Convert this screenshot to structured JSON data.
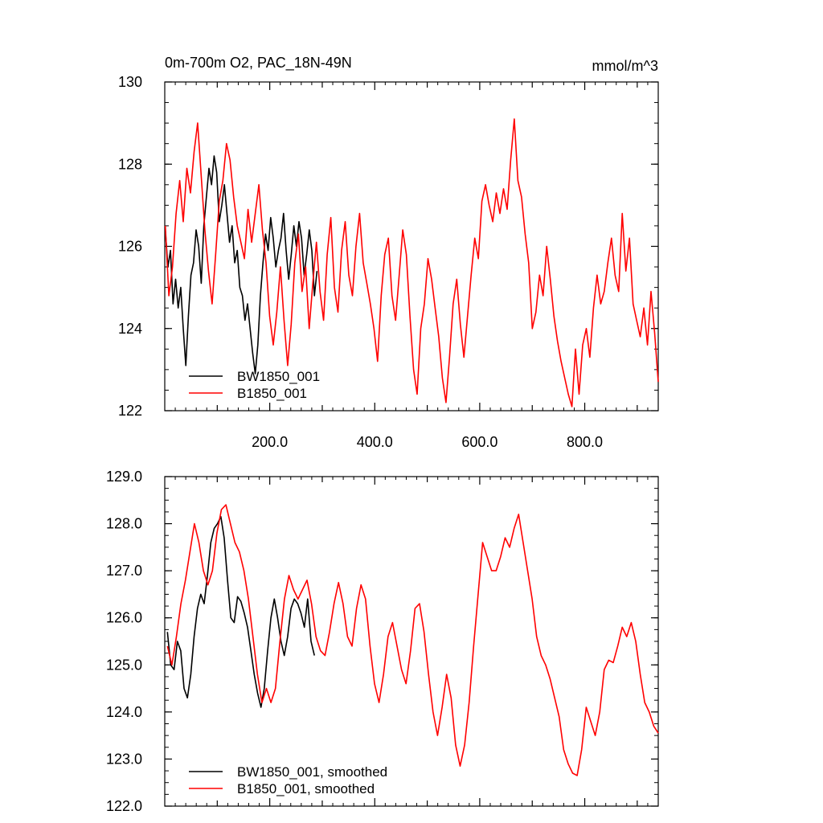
{
  "chart_data": [
    {
      "type": "line",
      "title": "0m-700m O2, PAC_18N-49N",
      "units": "mmol/m^3",
      "xlim": [
        0,
        940
      ],
      "ylim": [
        122,
        130
      ],
      "yticks": [
        "122",
        "124",
        "126",
        "128",
        "130"
      ],
      "xticks": [
        "200.0",
        "400.0",
        "600.0",
        "800.0"
      ],
      "legend_position": "bottom-left",
      "series": [
        {
          "name": "BW1850_001",
          "color": "#000000",
          "x_start": 1,
          "x_end": 290,
          "values": [
            126.4,
            125.5,
            125.9,
            124.6,
            125.2,
            124.5,
            125.0,
            124.0,
            123.1,
            124.3,
            125.3,
            125.6,
            126.4,
            126.0,
            125.1,
            126.5,
            127.2,
            127.9,
            127.5,
            128.2,
            127.8,
            126.6,
            127.0,
            127.5,
            126.8,
            126.1,
            126.5,
            125.6,
            125.9,
            125.0,
            124.8,
            124.2,
            124.6,
            124.0,
            123.4,
            122.9,
            123.6,
            124.8,
            125.6,
            126.3,
            125.9,
            126.7,
            126.2,
            125.5,
            125.9,
            126.2,
            126.8,
            125.9,
            125.2,
            125.8,
            126.5,
            126.0,
            126.6,
            126.2,
            125.3,
            125.8,
            126.4,
            125.9,
            124.8,
            125.4
          ],
          "smoothed": [
            125.7,
            125.0,
            124.9,
            125.5,
            125.3,
            124.5,
            124.3,
            124.8,
            125.6,
            126.2,
            126.5,
            126.3,
            126.9,
            127.6,
            127.9,
            128.0,
            128.15,
            127.7,
            126.8,
            126.0,
            125.9,
            126.45,
            126.35,
            126.1,
            125.8,
            125.3,
            124.8,
            124.4,
            124.1,
            124.5,
            125.3,
            126.0,
            126.4,
            126.0,
            125.5,
            125.2,
            125.6,
            126.2,
            126.4,
            126.3,
            126.1,
            125.8,
            126.4,
            125.5,
            125.2
          ]
        },
        {
          "name": "B1850_001",
          "color": "#ff0000",
          "x_start": 1,
          "x_end": 940,
          "values": [
            126.5,
            124.8,
            125.5,
            126.8,
            127.6,
            126.6,
            127.9,
            127.3,
            128.3,
            129.0,
            127.7,
            126.4,
            125.4,
            124.6,
            125.8,
            127.1,
            127.6,
            128.5,
            128.1,
            127.2,
            126.5,
            126.1,
            125.7,
            126.9,
            126.1,
            126.8,
            127.5,
            126.4,
            125.6,
            124.3,
            123.6,
            124.4,
            125.5,
            124.2,
            123.1,
            124.1,
            125.6,
            126.3,
            124.9,
            125.5,
            124.0,
            125.1,
            126.1,
            124.9,
            124.2,
            125.8,
            126.7,
            125.0,
            124.4,
            125.9,
            126.6,
            125.3,
            124.8,
            126.0,
            126.8,
            125.6,
            125.1,
            124.6,
            124.0,
            123.2,
            124.8,
            125.8,
            126.2,
            124.8,
            124.2,
            125.3,
            126.4,
            125.8,
            124.3,
            123.0,
            122.4,
            124.0,
            124.6,
            125.7,
            125.2,
            124.5,
            123.8,
            122.8,
            122.2,
            123.3,
            124.6,
            125.2,
            124.1,
            123.3,
            124.3,
            125.3,
            126.2,
            125.7,
            127.1,
            127.5,
            127.0,
            126.6,
            127.3,
            126.8,
            127.4,
            126.9,
            128.1,
            129.1,
            127.6,
            127.2,
            126.3,
            125.6,
            124.0,
            124.4,
            125.3,
            124.8,
            126.0,
            125.2,
            124.3,
            123.7,
            123.2,
            122.8,
            122.4,
            122.1,
            123.5,
            122.4,
            123.6,
            124.0,
            123.3,
            124.5,
            125.3,
            124.6,
            124.9,
            125.6,
            126.2,
            125.3,
            124.9,
            126.8,
            125.4,
            126.2,
            124.6,
            124.2,
            123.8,
            124.5,
            123.6,
            124.9,
            123.9,
            122.7
          ]
        }
      ],
      "legend": [
        "BW1850_001",
        "B1850_001"
      ]
    },
    {
      "type": "line",
      "xlim": [
        0,
        940
      ],
      "ylim": [
        122,
        129
      ],
      "yticks": [
        "122.0",
        "123.0",
        "124.0",
        "125.0",
        "126.0",
        "127.0",
        "128.0",
        "129.0"
      ],
      "legend_position": "bottom-left",
      "series": [
        {
          "name": "BW1850_001, smoothed",
          "color": "#000000",
          "x_start": 5,
          "x_end": 285,
          "values": [
            125.7,
            125.0,
            124.9,
            125.5,
            125.3,
            124.5,
            124.3,
            124.8,
            125.6,
            126.2,
            126.5,
            126.3,
            126.9,
            127.6,
            127.9,
            128.0,
            128.15,
            127.7,
            126.8,
            126.0,
            125.9,
            126.45,
            126.35,
            126.1,
            125.8,
            125.3,
            124.8,
            124.4,
            124.1,
            124.5,
            125.3,
            126.0,
            126.4,
            126.0,
            125.5,
            125.2,
            125.6,
            126.2,
            126.4,
            126.3,
            126.1,
            125.8,
            126.4,
            125.5,
            125.2
          ]
        },
        {
          "name": "B1850_001, smoothed",
          "color": "#ff0000",
          "x_start": 5,
          "x_end": 940,
          "values": [
            125.4,
            125.0,
            125.6,
            126.3,
            126.8,
            127.4,
            128.0,
            127.6,
            127.0,
            126.7,
            127.0,
            127.8,
            128.3,
            128.4,
            128.0,
            127.6,
            127.4,
            127.0,
            126.4,
            125.6,
            124.8,
            124.2,
            124.5,
            124.2,
            124.5,
            125.5,
            126.4,
            126.9,
            126.6,
            126.4,
            126.6,
            126.8,
            126.3,
            125.6,
            125.3,
            125.2,
            125.7,
            126.3,
            126.75,
            126.3,
            125.6,
            125.4,
            126.2,
            126.7,
            126.4,
            125.4,
            124.6,
            124.2,
            124.8,
            125.6,
            125.9,
            125.4,
            124.9,
            124.6,
            125.3,
            126.2,
            126.3,
            125.7,
            124.8,
            124.0,
            123.5,
            124.1,
            124.8,
            124.3,
            123.3,
            122.85,
            123.3,
            124.2,
            125.4,
            126.5,
            127.6,
            127.3,
            127.0,
            127.0,
            127.3,
            127.7,
            127.5,
            127.9,
            128.2,
            127.6,
            127.0,
            126.4,
            125.6,
            125.2,
            125.0,
            124.7,
            124.3,
            123.9,
            123.2,
            122.9,
            122.7,
            122.65,
            123.2,
            124.1,
            123.8,
            123.5,
            124.0,
            124.9,
            125.1,
            125.05,
            125.4,
            125.8,
            125.6,
            125.9,
            125.5,
            124.8,
            124.2,
            124.0,
            123.7,
            123.55
          ]
        }
      ],
      "legend": [
        "BW1850_001, smoothed",
        "B1850_001, smoothed"
      ]
    }
  ]
}
